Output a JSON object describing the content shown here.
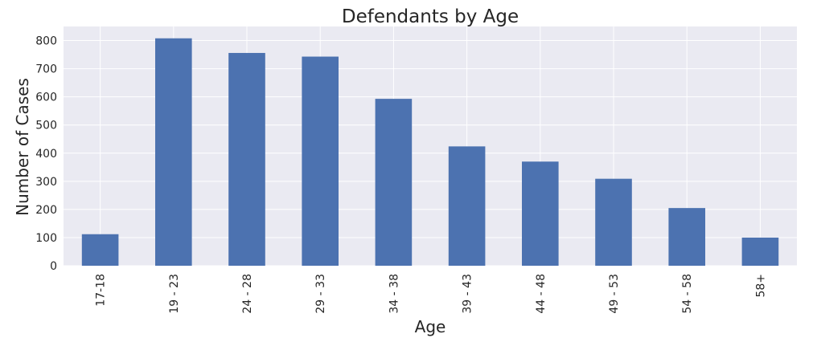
{
  "chart_data": {
    "type": "bar",
    "title": "Defendants by Age",
    "xlabel": "Age",
    "ylabel": "Number of Cases",
    "categories": [
      "17-18",
      "19 - 23",
      "24 - 28",
      "29 - 33",
      "34 - 38",
      "39 - 43",
      "44 - 48",
      "49 - 53",
      "54 - 58",
      "58+"
    ],
    "values": [
      112,
      808,
      756,
      743,
      593,
      424,
      370,
      309,
      205,
      100
    ],
    "ylim": [
      0,
      850
    ],
    "yticks": [
      0,
      100,
      200,
      300,
      400,
      500,
      600,
      700,
      800
    ],
    "grid": true,
    "legend": "none",
    "colors": {
      "bar": "#4c72b0",
      "plot_background": "#eaeaf2",
      "grid": "#ffffff",
      "text": "#262626"
    }
  }
}
